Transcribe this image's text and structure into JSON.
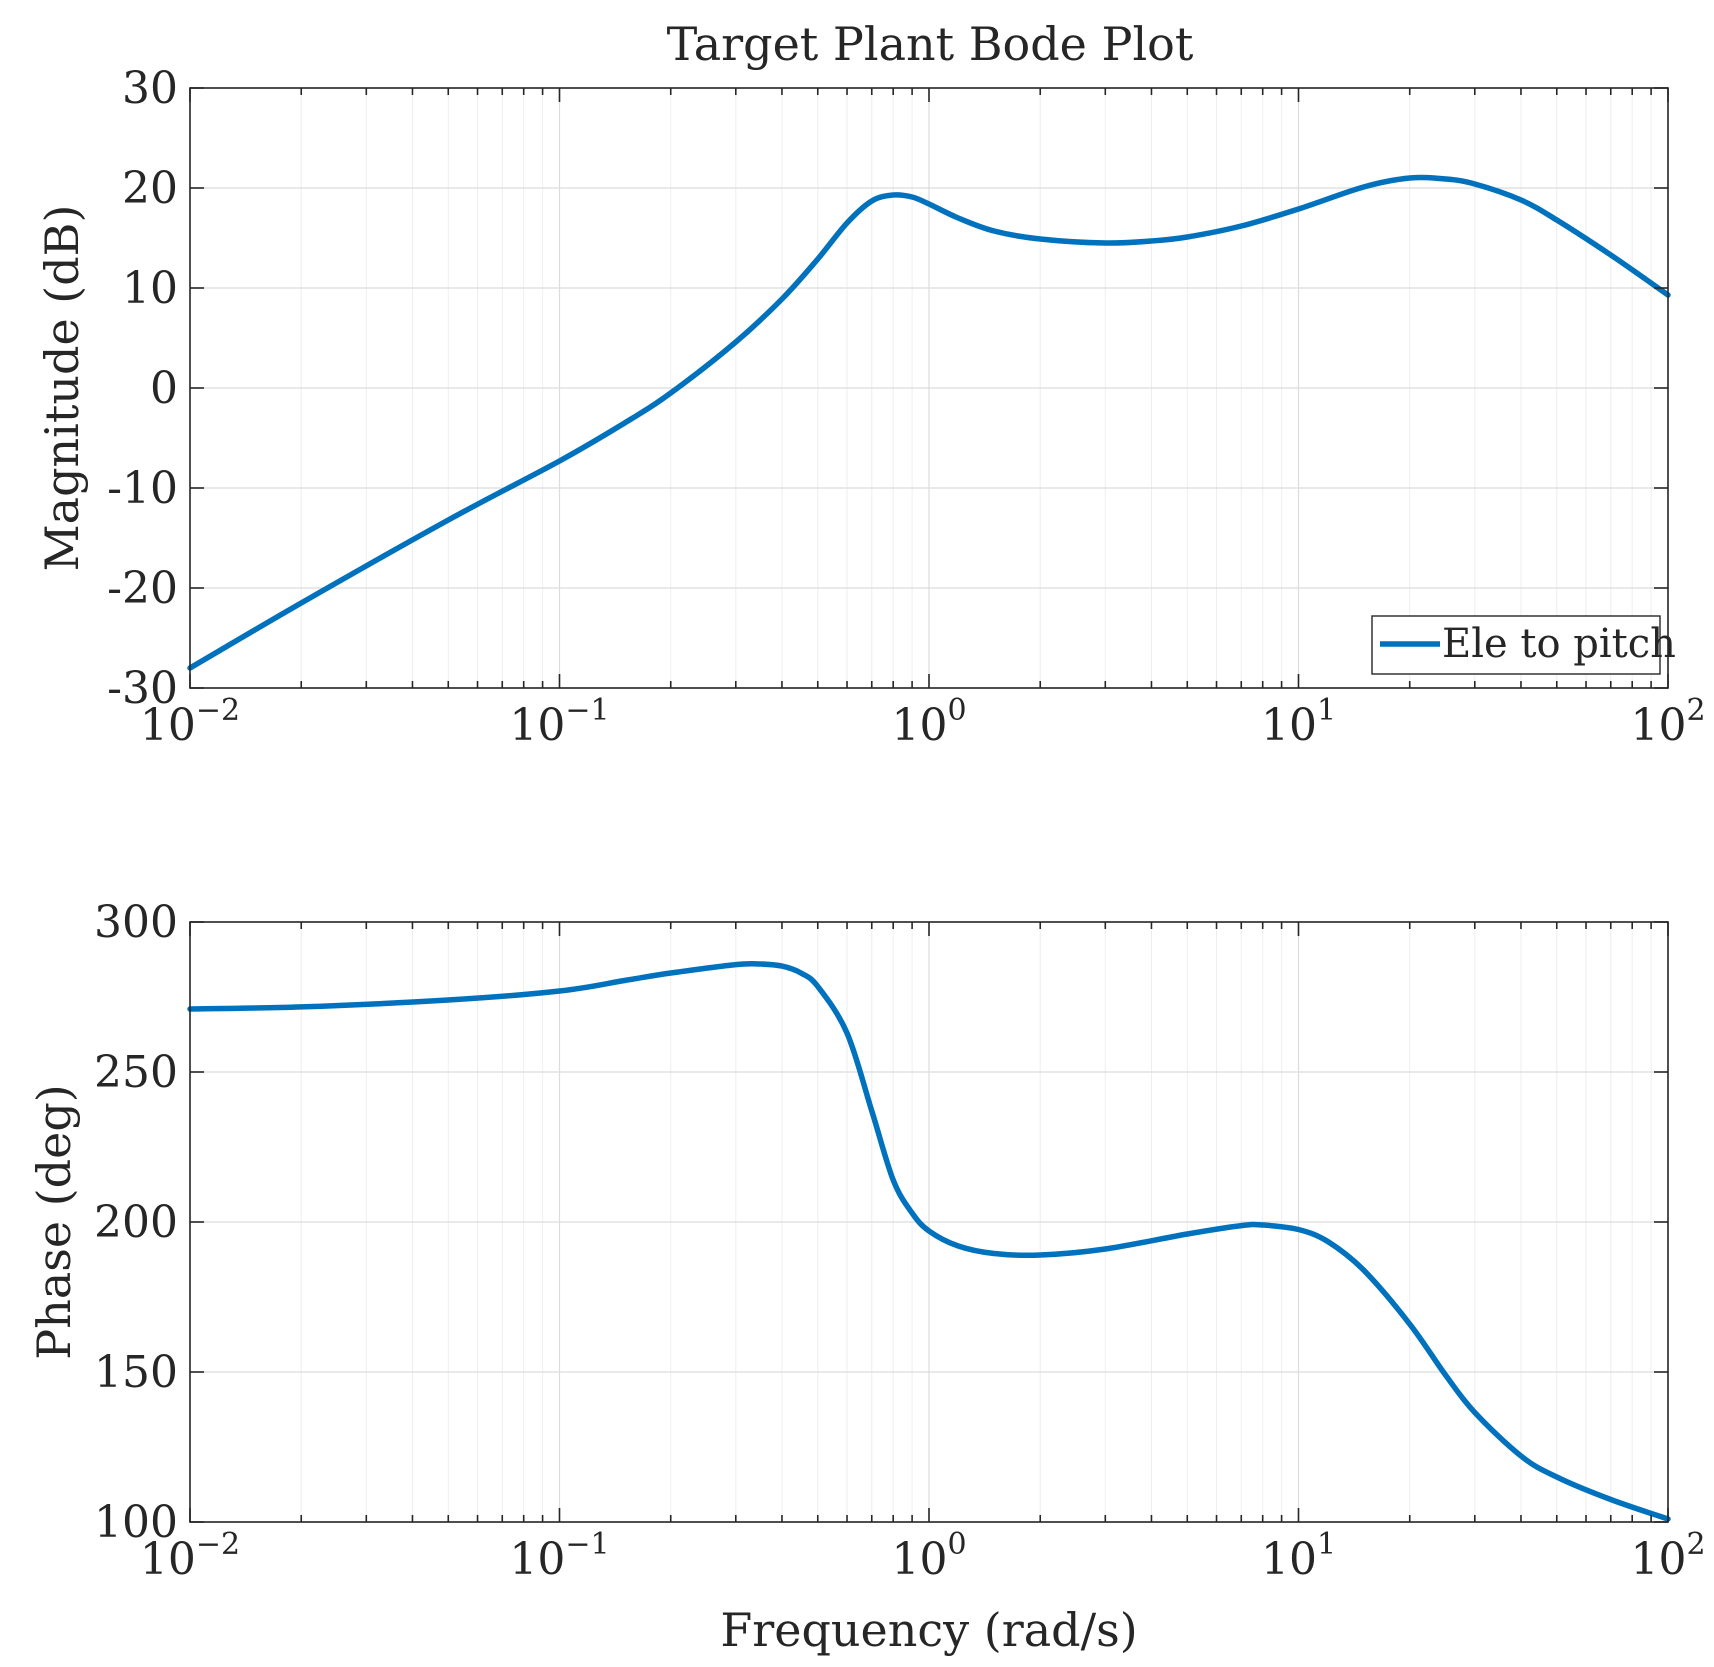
{
  "chart_data": {
    "type": "line",
    "title": "Target Plant Bode Plot",
    "xlabel": "Frequency (rad/s)",
    "x_scale": "log",
    "xlim": [
      0.01,
      100
    ],
    "x_ticks": [
      {
        "value": 0.01,
        "base": "10",
        "exp": "−2"
      },
      {
        "value": 0.1,
        "base": "10",
        "exp": "−1"
      },
      {
        "value": 1,
        "base": "10",
        "exp": "0"
      },
      {
        "value": 10,
        "base": "10",
        "exp": "1"
      },
      {
        "value": 100,
        "base": "10",
        "exp": "2"
      }
    ],
    "series_color": "#0072BD",
    "legend": {
      "label": "Ele to pitch",
      "location": "bottom-right"
    },
    "grid": true,
    "panels": [
      {
        "name": "magnitude",
        "ylabel": "Magnitude (dB)",
        "ylim": [
          -30,
          30
        ],
        "y_ticks": [
          "30",
          "20",
          "10",
          "0",
          "-10",
          "-20",
          "-30"
        ],
        "series": [
          {
            "name": "Ele to pitch",
            "x": [
              0.01,
              0.02,
              0.05,
              0.1,
              0.15,
              0.2,
              0.3,
              0.4,
              0.5,
              0.6,
              0.7,
              0.8,
              0.9,
              1.0,
              1.2,
              1.5,
              2,
              3,
              4,
              5,
              7,
              10,
              15,
              20,
              25,
              30,
              40,
              50,
              70,
              100
            ],
            "y": [
              -28,
              -21.5,
              -13.2,
              -7.3,
              -3.5,
              -0.5,
              4.6,
              8.9,
              12.9,
              16.5,
              18.7,
              19.3,
              19.1,
              18.4,
              17.0,
              15.7,
              14.9,
              14.5,
              14.7,
              15.1,
              16.2,
              17.9,
              20.1,
              21.0,
              20.9,
              20.4,
              18.8,
              16.8,
              13.3,
              9.3
            ]
          }
        ]
      },
      {
        "name": "phase",
        "ylabel": "Phase (deg)",
        "ylim": [
          100,
          300
        ],
        "y_ticks": [
          "300",
          "250",
          "200",
          "150",
          "100"
        ],
        "series": [
          {
            "name": "Ele to pitch",
            "x": [
              0.01,
              0.02,
              0.05,
              0.1,
              0.15,
              0.2,
              0.3,
              0.35,
              0.4,
              0.45,
              0.5,
              0.6,
              0.7,
              0.8,
              0.9,
              1.0,
              1.2,
              1.5,
              2,
              3,
              5,
              7,
              8,
              10,
              12,
              15,
              20,
              25,
              30,
              40,
              50,
              70,
              100
            ],
            "y": [
              271,
              271.7,
              274,
              277,
              280.5,
              283,
              285.8,
              286,
              285.3,
              283,
              278.5,
              263,
              237,
              214,
              203,
              197,
              192,
              189.5,
              189,
              191,
              196,
              198.8,
              199,
              197.5,
              193.5,
              184,
              166,
              149,
              136.5,
              122,
              115,
              107.5,
              101
            ]
          }
        ]
      }
    ]
  }
}
